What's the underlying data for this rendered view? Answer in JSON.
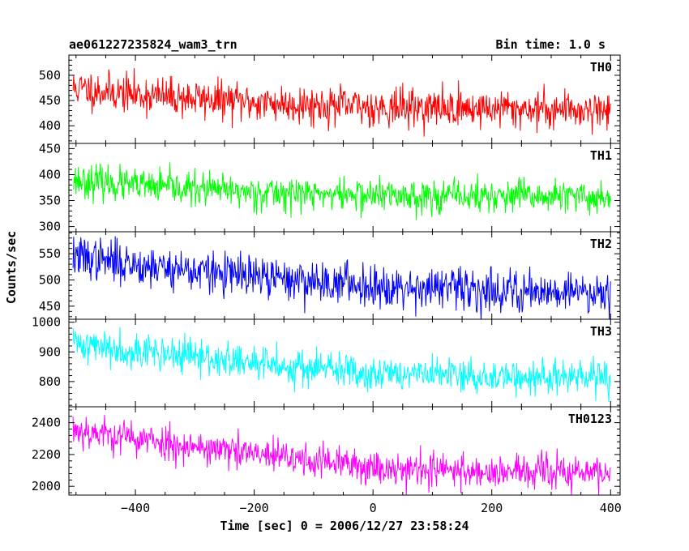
{
  "header": {
    "title": "ae061227235824_wam3_trn",
    "bin_time": "Bin time: 1.0 s"
  },
  "axes": {
    "xlabel": "Time [sec] 0 = 2006/12/27 23:58:24",
    "ylabel": "Counts/sec",
    "x_ticks": [
      "−400",
      "−200",
      "0",
      "200",
      "400"
    ]
  },
  "chart_data": [
    {
      "type": "line",
      "name": "TH0",
      "color": "#ff0000",
      "xlim": [
        -512,
        416
      ],
      "ylim": [
        365,
        540
      ],
      "yticks": [
        400,
        450,
        500
      ],
      "ytick_labels": [
        "400",
        "450",
        "500"
      ],
      "x_start": -505,
      "x_end": 400,
      "bin": 1.0,
      "trend": [
        [
          -505,
          475
        ],
        [
          -400,
          462
        ],
        [
          -200,
          446
        ],
        [
          0,
          437
        ],
        [
          200,
          434
        ],
        [
          400,
          432
        ]
      ],
      "noise_sigma": 19,
      "seed": 11
    },
    {
      "type": "line",
      "name": "TH1",
      "color": "#00ff00",
      "xlim": [
        -512,
        416
      ],
      "ylim": [
        290,
        460
      ],
      "yticks": [
        300,
        350,
        400,
        450
      ],
      "ytick_labels": [
        "300",
        "350",
        "400",
        "450"
      ],
      "x_start": -505,
      "x_end": 400,
      "bin": 1.0,
      "trend": [
        [
          -505,
          390
        ],
        [
          -400,
          378
        ],
        [
          -200,
          366
        ],
        [
          0,
          360
        ],
        [
          200,
          358
        ],
        [
          400,
          356
        ]
      ],
      "noise_sigma": 16,
      "seed": 23
    },
    {
      "type": "line",
      "name": "TH2",
      "color": "#0000ff",
      "xlim": [
        -512,
        416
      ],
      "ylim": [
        425,
        592
      ],
      "yticks": [
        450,
        500,
        550
      ],
      "ytick_labels": [
        "450",
        "500",
        "550"
      ],
      "x_start": -505,
      "x_end": 400,
      "bin": 1.0,
      "trend": [
        [
          -505,
          545
        ],
        [
          -400,
          530
        ],
        [
          -200,
          505
        ],
        [
          0,
          490
        ],
        [
          200,
          480
        ],
        [
          400,
          478
        ]
      ],
      "noise_sigma": 20,
      "seed": 37
    },
    {
      "type": "line",
      "name": "TH3",
      "color": "#00ffff",
      "xlim": [
        -512,
        416
      ],
      "ylim": [
        715,
        1010
      ],
      "yticks": [
        800,
        900,
        1000
      ],
      "ytick_labels": [
        "800",
        "900",
        "1000"
      ],
      "x_start": -505,
      "x_end": 400,
      "bin": 1.0,
      "trend": [
        [
          -505,
          930
        ],
        [
          -400,
          905
        ],
        [
          -200,
          860
        ],
        [
          0,
          830
        ],
        [
          200,
          815
        ],
        [
          400,
          812
        ]
      ],
      "noise_sigma": 30,
      "seed": 41
    },
    {
      "type": "line",
      "name": "TH0123",
      "color": "#ff00ff",
      "xlim": [
        -512,
        416
      ],
      "ylim": [
        1945,
        2500
      ],
      "yticks": [
        2000,
        2200,
        2400
      ],
      "ytick_labels": [
        "2000",
        "2200",
        "2400"
      ],
      "x_start": -505,
      "x_end": 400,
      "bin": 1.0,
      "trend": [
        [
          -505,
          2360
        ],
        [
          -400,
          2300
        ],
        [
          -200,
          2200
        ],
        [
          0,
          2120
        ],
        [
          200,
          2090
        ],
        [
          400,
          2085
        ]
      ],
      "noise_sigma": 55,
      "seed": 53
    }
  ]
}
